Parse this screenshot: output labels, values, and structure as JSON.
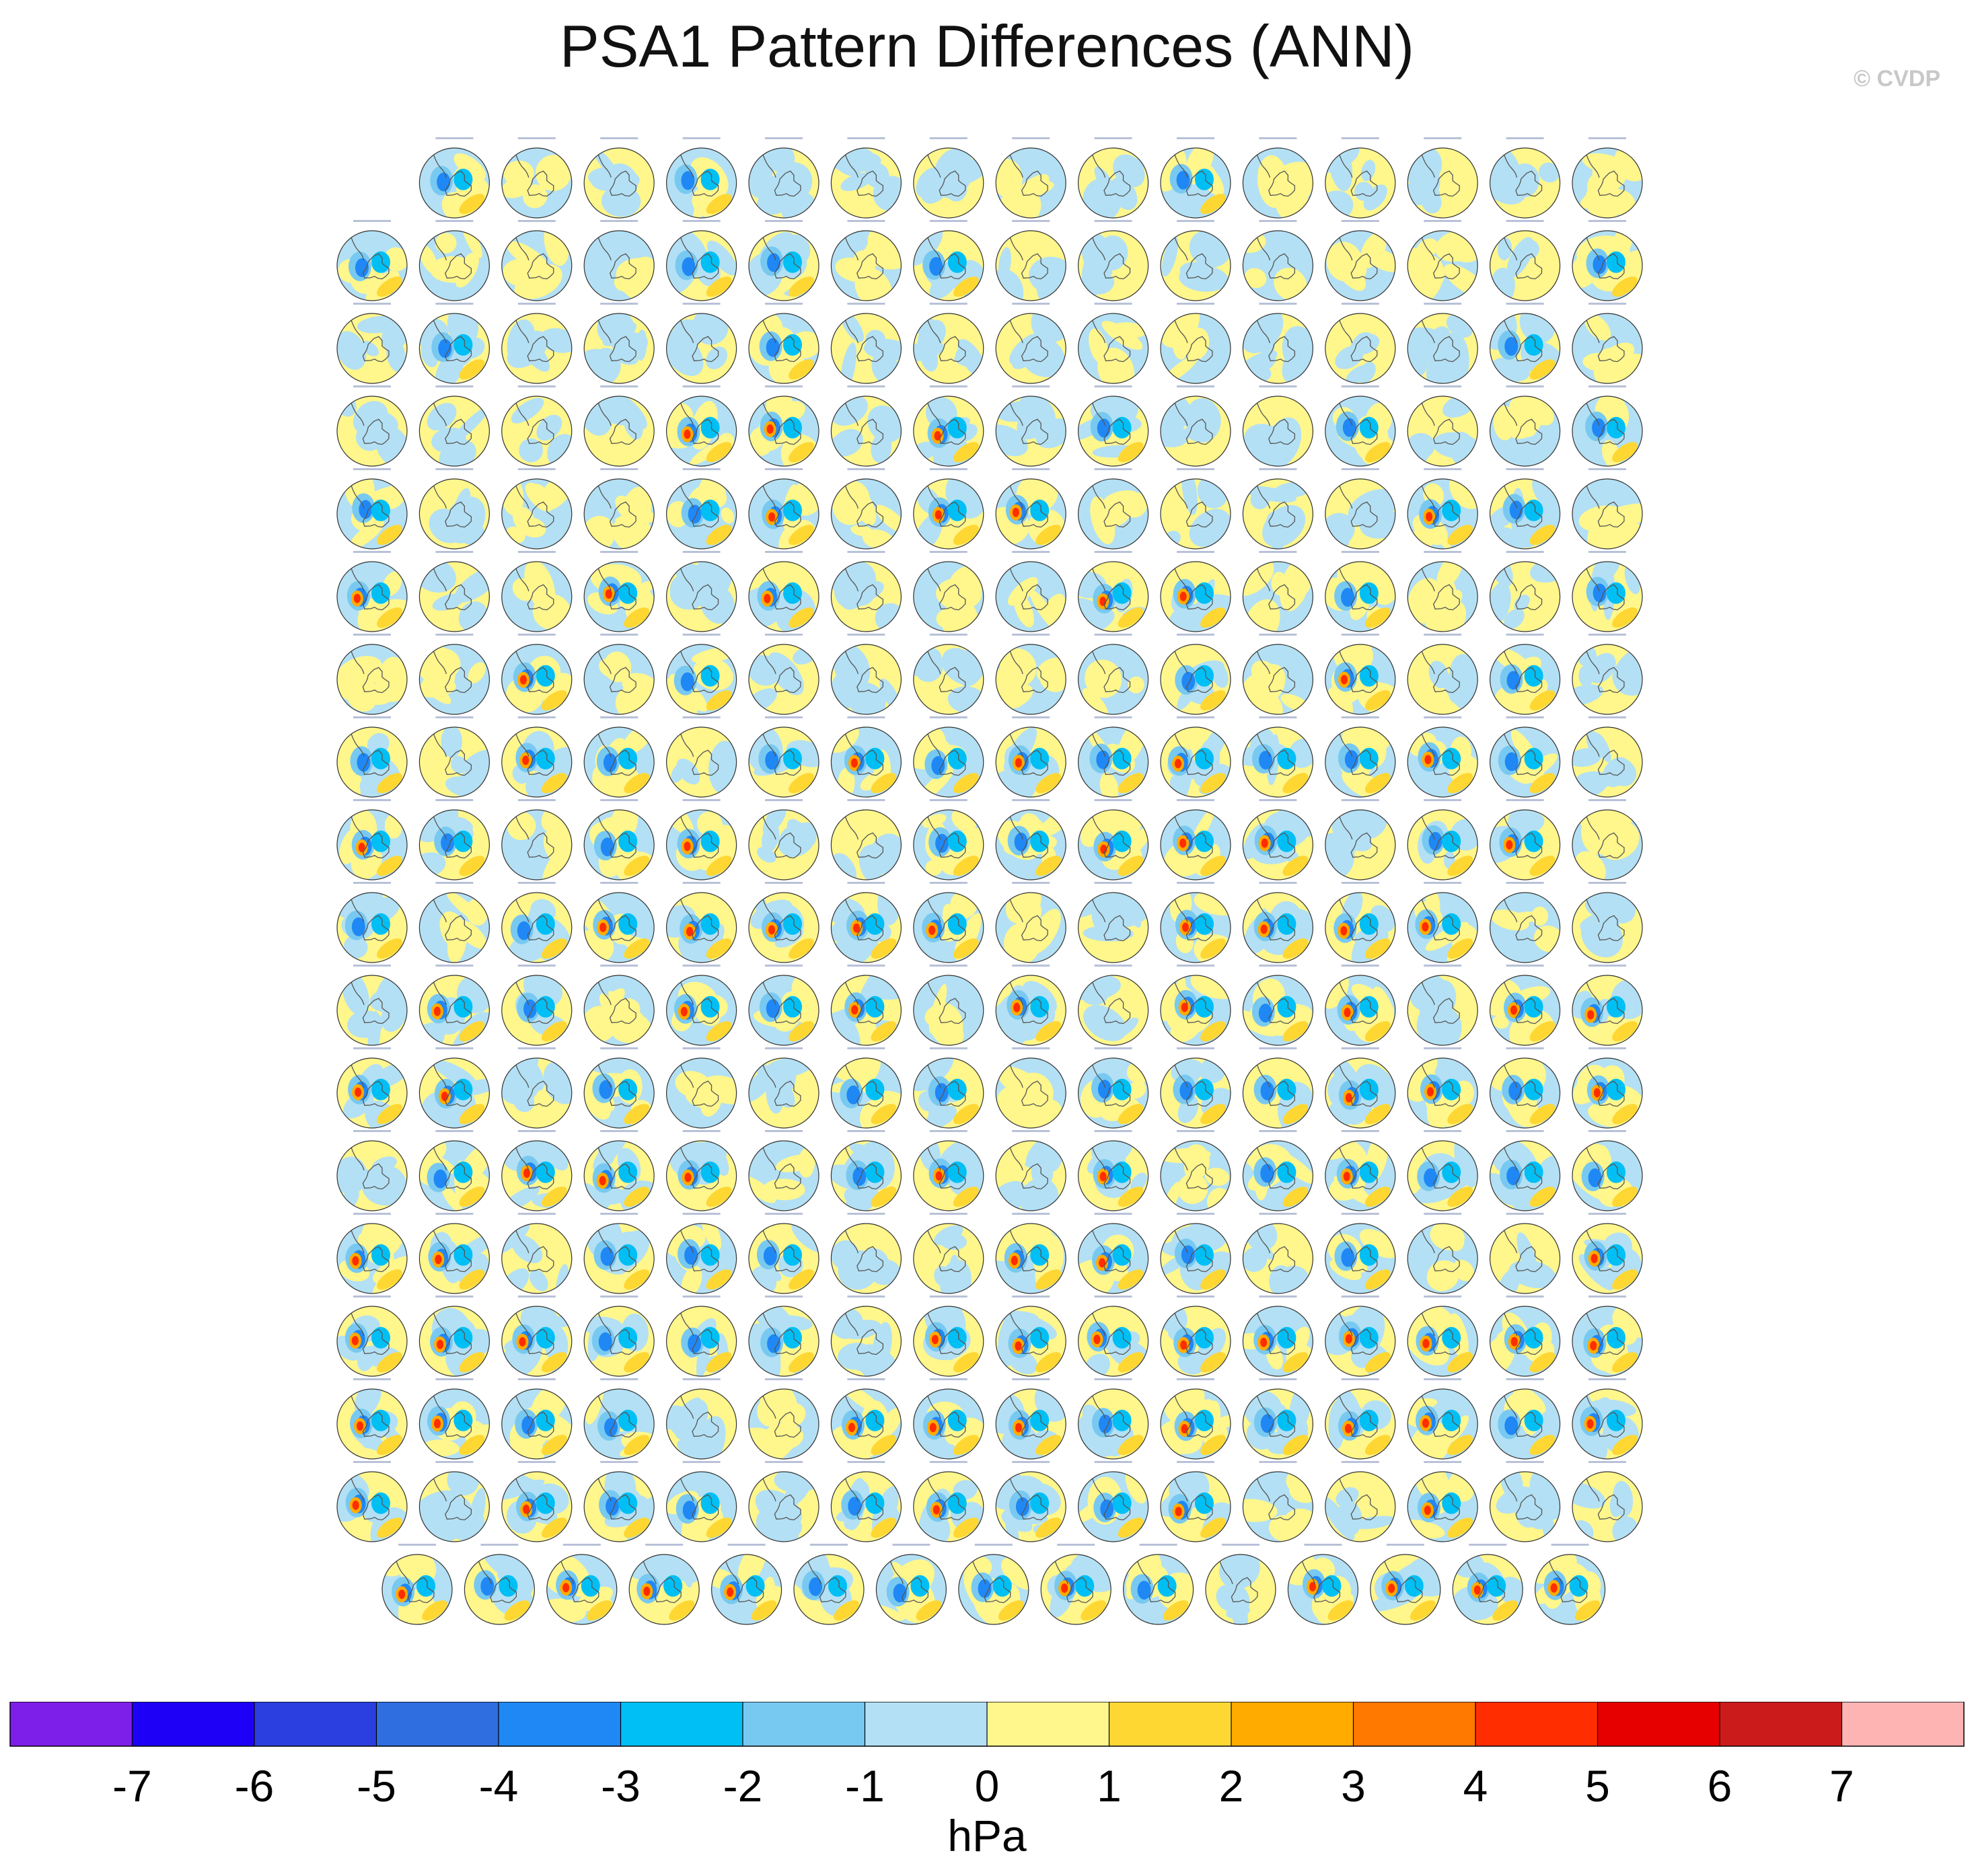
{
  "title": "PSA1 Pattern Differences (ANN)",
  "credit": "© CVDP",
  "chart_data": {
    "type": "panel-grid-contour-maps",
    "title": "PSA1 Pattern Differences (ANN)",
    "rows_panel_counts": [
      15,
      16,
      16,
      16,
      16,
      16,
      16,
      16,
      16,
      16,
      16,
      16,
      16,
      16,
      16,
      16,
      16,
      15
    ],
    "panel_titles_legible": false,
    "colorbar": {
      "label": "hPa",
      "ticks": [
        "-7",
        "-6",
        "-5",
        "-4",
        "-3",
        "-2",
        "-1",
        "0",
        "1",
        "2",
        "3",
        "4",
        "5",
        "6",
        "7"
      ],
      "colors": [
        "#7e1ee9",
        "#1e00f7",
        "#2b3fe0",
        "#2f6ee0",
        "#2088f5",
        "#00bff5",
        "#78c9f1",
        "#b3e0f4",
        "#fff68c",
        "#ffd733",
        "#ffab00",
        "#ff7800",
        "#ff2d00",
        "#e60000",
        "#cc1b1b",
        "#ffb4b4"
      ]
    }
  }
}
